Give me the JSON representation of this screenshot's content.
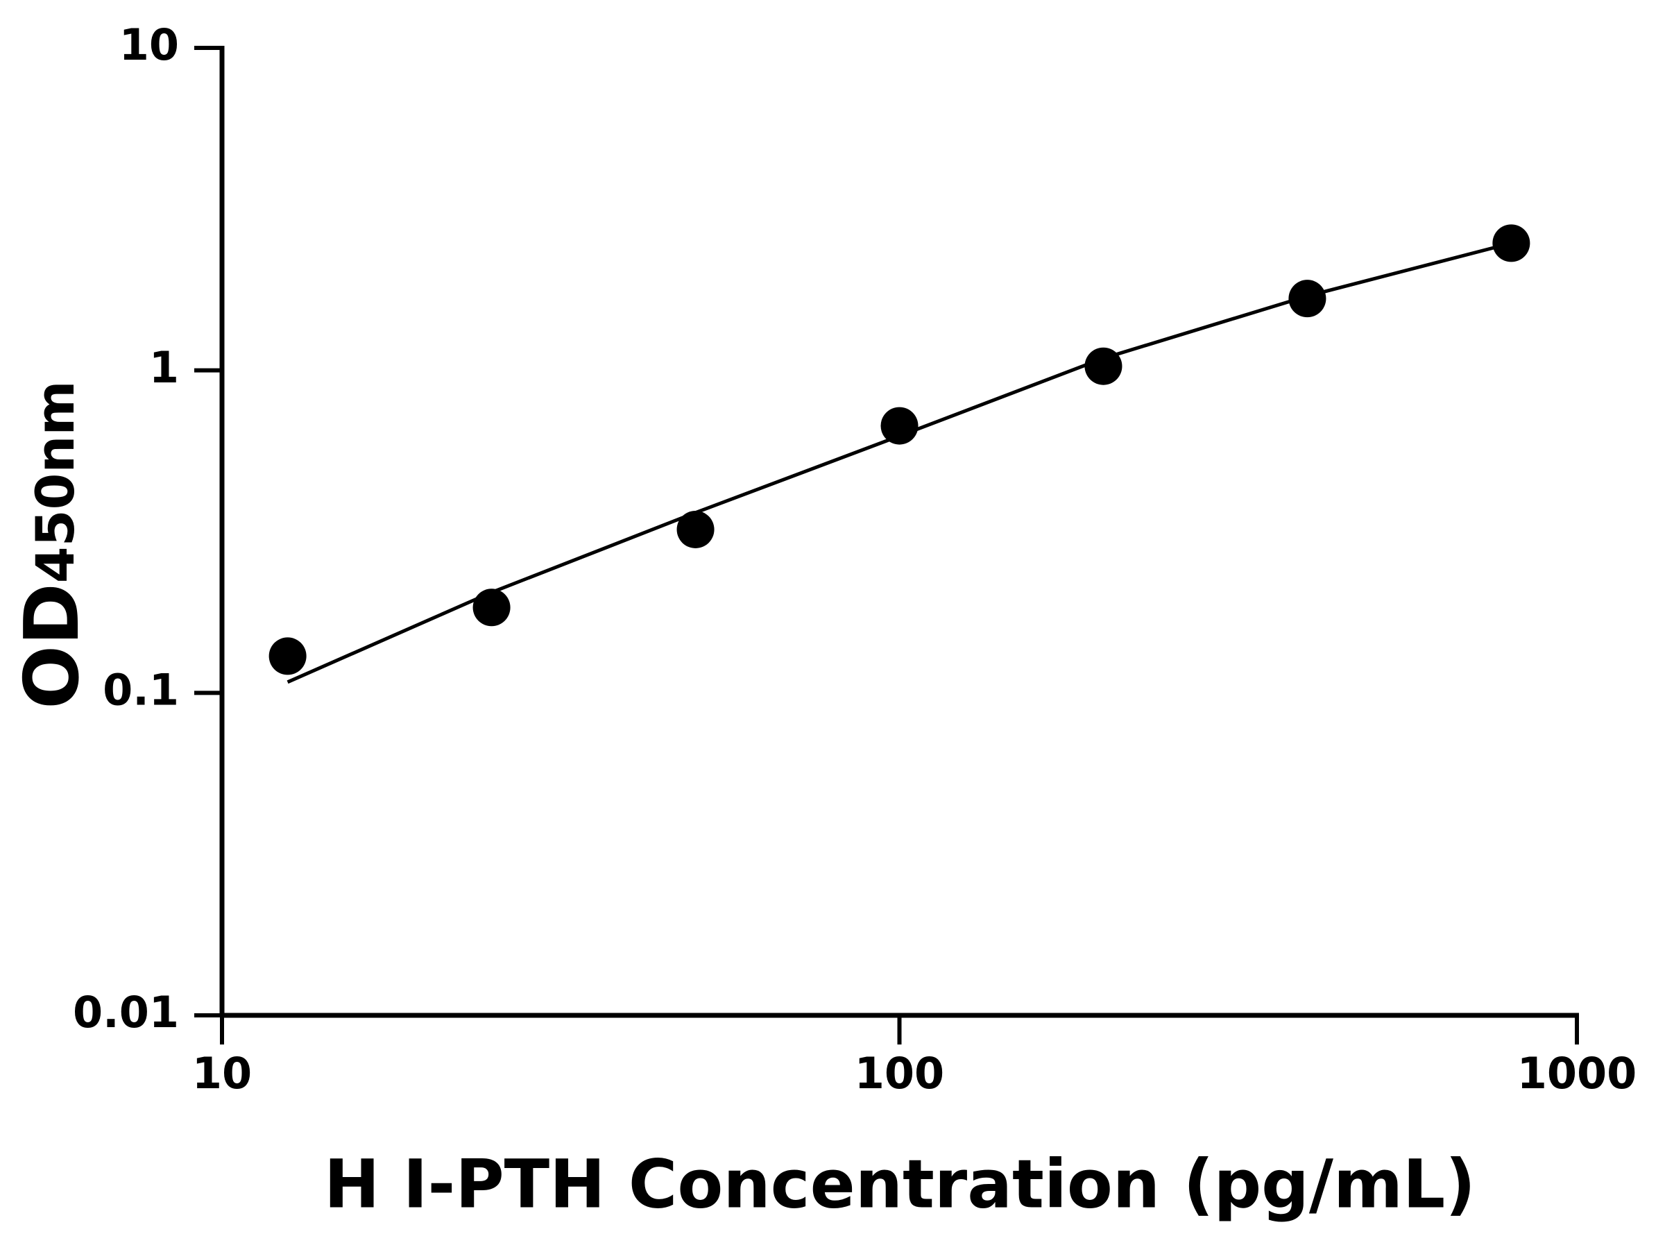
{
  "chart_data": {
    "type": "scatter",
    "xlabel": "H I-PTH Concentration (pg/mL)",
    "ylabel": "OD",
    "ylabel_sub": "450nm",
    "xscale": "log",
    "yscale": "log",
    "xlim": [
      10,
      1000
    ],
    "ylim": [
      0.01,
      10
    ],
    "xticks": [
      10,
      100,
      1000
    ],
    "yticks": [
      0.01,
      0.1,
      1,
      10
    ],
    "grid": false,
    "series": [
      {
        "mode": "markers",
        "color": "#000000",
        "x": [
          12.5,
          25,
          50,
          100,
          200,
          400,
          800
        ],
        "values": [
          0.13,
          0.184,
          0.321,
          0.673,
          1.03,
          1.67,
          2.48
        ]
      },
      {
        "mode": "line",
        "color": "#000000",
        "x": [
          12.5,
          25,
          50,
          100,
          200,
          400,
          800
        ],
        "values": [
          0.108,
          0.205,
          0.362,
          0.626,
          1.09,
          1.7,
          2.48
        ]
      }
    ]
  }
}
